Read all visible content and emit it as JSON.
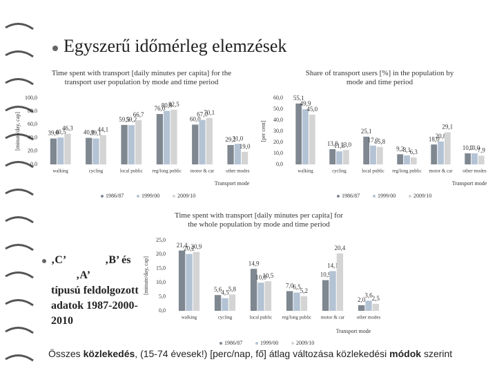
{
  "slide": {
    "title": "Egyszerű időmérleg elemzések",
    "side_text": [
      "‚C’",
      "‚B’ és",
      "‚A’",
      "típusú feldolgozott adatok 1987-2000-2010"
    ],
    "caption": [
      "Összes ",
      "közlekedés",
      ", (15-74 évesek!) [perc/nap, fő] átlag változása közlekedési ",
      "módok",
      " szerint"
    ]
  },
  "chart_data": [
    {
      "type": "bar",
      "title": "Time spent with transport [daily minutes per capita] for the transport user population by mode and time period",
      "y_label": "[minute/day, cap]",
      "x_label": "Transport mode",
      "categories": [
        "walking",
        "cycling",
        "local public",
        "reg/long public",
        "motor & car",
        "other modes"
      ],
      "ylim": [
        0,
        100
      ],
      "yticks": [
        {
          "value": 0,
          "label": "0,0"
        },
        {
          "value": 20,
          "label": "20,0"
        },
        {
          "value": 40,
          "label": "40,0"
        },
        {
          "value": 60,
          "label": "60,0"
        },
        {
          "value": 80,
          "label": "80,0"
        },
        {
          "value": 100,
          "label": "100,0"
        }
      ],
      "series": [
        {
          "name": "1986/87",
          "color": "#7f8790",
          "values": [
            39.0,
            40.0,
            59.5,
            76.0,
            60.0,
            29.2
          ],
          "value_labels": [
            "39,0",
            "40,0",
            "59,5",
            "76,0",
            "60,0",
            "29,2"
          ]
        },
        {
          "name": "1999/00",
          "color": "#b4c3d4",
          "values": [
            40.5,
            39.1,
            59.2,
            80.8,
            67.0,
            31.0
          ],
          "value_labels": [
            "40,5",
            "39,1",
            "59,2",
            "80,8",
            "67,0",
            "31,0"
          ]
        },
        {
          "name": "2009/10",
          "color": "#d4d4d4",
          "values": [
            46.3,
            44.1,
            66.7,
            82.5,
            70.1,
            19.0
          ],
          "value_labels": [
            "46,3",
            "44,1",
            "66,7",
            "82,5",
            "70,1",
            "19,0"
          ]
        }
      ]
    },
    {
      "type": "bar",
      "title": "Share of transport users [%] in the population by mode and time period",
      "y_label": "[per cent]",
      "x_label": "Transport mode",
      "categories": [
        "walking",
        "cycling",
        "local public",
        "reg/long public",
        "motor & car",
        "other modes"
      ],
      "ylim": [
        0,
        60
      ],
      "yticks": [
        {
          "value": 0,
          "label": "0,0"
        },
        {
          "value": 10,
          "label": "10,0"
        },
        {
          "value": 20,
          "label": "20,0"
        },
        {
          "value": 30,
          "label": "30,0"
        },
        {
          "value": 40,
          "label": "40,0"
        },
        {
          "value": 50,
          "label": "50,0"
        },
        {
          "value": 60,
          "label": "60,0"
        }
      ],
      "series": [
        {
          "name": "1986/87",
          "color": "#7f8790",
          "values": [
            55.1,
            13.8,
            25.1,
            9.2,
            18.0,
            10.0
          ],
          "value_labels": [
            "55,1",
            "13,8",
            "25,1",
            "9,2",
            "18,0",
            "10,0"
          ]
        },
        {
          "name": "1999/00",
          "color": "#b4c3d4",
          "values": [
            49.9,
            11.8,
            17.0,
            8.1,
            20.8,
            10.0
          ],
          "value_labels": [
            "49,9",
            "11,8",
            "17,0",
            "8,1",
            "20,8",
            "10,0"
          ]
        },
        {
          "name": "2009/10",
          "color": "#d4d4d4",
          "values": [
            45.0,
            13.0,
            15.8,
            6.3,
            29.1,
            7.9
          ],
          "value_labels": [
            "45,0",
            "13,0",
            "15,8",
            "6,3",
            "29,1",
            "7,9"
          ]
        }
      ]
    },
    {
      "type": "bar",
      "title": "Time spent with transport [daily minutes per capita] for the whole population by mode and time period",
      "y_label": "[minute/day, cap]",
      "x_label": "Transport mode",
      "categories": [
        "walking",
        "cycling",
        "local public",
        "reg/long public",
        "motor & car",
        "other modes"
      ],
      "ylim": [
        0,
        25
      ],
      "yticks": [
        {
          "value": 0,
          "label": "0,0"
        },
        {
          "value": 5,
          "label": "5,0"
        },
        {
          "value": 10,
          "label": "10,0"
        },
        {
          "value": 15,
          "label": "15,0"
        },
        {
          "value": 20,
          "label": "20,0"
        },
        {
          "value": 25,
          "label": "25,0"
        }
      ],
      "series": [
        {
          "name": "1986/87",
          "color": "#7f8790",
          "values": [
            21.4,
            5.6,
            14.9,
            7.0,
            10.9,
            2.0
          ],
          "value_labels": [
            "21,4",
            "5,6",
            "14,9",
            "7,0",
            "10,9",
            "2,0"
          ]
        },
        {
          "name": "1999/00",
          "color": "#b4c3d4",
          "values": [
            20.2,
            4.5,
            10.0,
            6.5,
            14.1,
            3.6
          ],
          "value_labels": [
            "20,2",
            "4,5",
            "10,0",
            "6,5",
            "14,1",
            "3,6"
          ]
        },
        {
          "name": "2009/10",
          "color": "#d4d4d4",
          "values": [
            20.9,
            5.8,
            10.5,
            5.2,
            20.4,
            2.5
          ],
          "value_labels": [
            "20,9",
            "5,8",
            "10,5",
            "5,2",
            "20,4",
            "2,5"
          ]
        }
      ]
    }
  ]
}
